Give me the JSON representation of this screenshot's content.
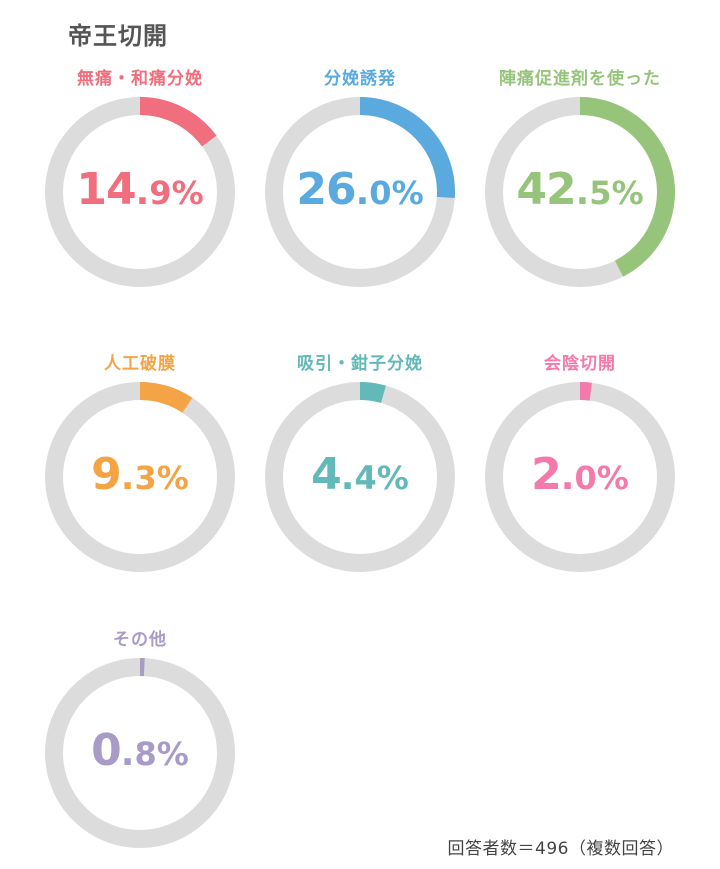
{
  "title": "帝王切開",
  "footnote": "回答者数＝496（複数回答）",
  "colors": {
    "track": "#dcdcdc",
    "title": "#555555"
  },
  "chart_data": {
    "type": "donut",
    "title": "帝王切開",
    "unit": "%",
    "items": [
      {
        "label": "無痛・和痛分娩",
        "value": 14.9,
        "int": "14",
        "dec": "9",
        "color": "#f06e7d"
      },
      {
        "label": "分娩誘発",
        "value": 26.0,
        "int": "26",
        "dec": "0",
        "color": "#5aaadf"
      },
      {
        "label": "陣痛促進剤を使った",
        "value": 42.5,
        "int": "42",
        "dec": "5",
        "color": "#97c47b"
      },
      {
        "label": "人工破膜",
        "value": 9.3,
        "int": "9",
        "dec": "3",
        "color": "#f4a445"
      },
      {
        "label": "吸引・鉗子分娩",
        "value": 4.4,
        "int": "4",
        "dec": "4",
        "color": "#62b9b8"
      },
      {
        "label": "会陰切開",
        "value": 2.0,
        "int": "2",
        "dec": "0",
        "color": "#f47aab"
      },
      {
        "label": "その他",
        "value": 0.8,
        "int": "0",
        "dec": "8",
        "color": "#a99bc7"
      }
    ]
  }
}
